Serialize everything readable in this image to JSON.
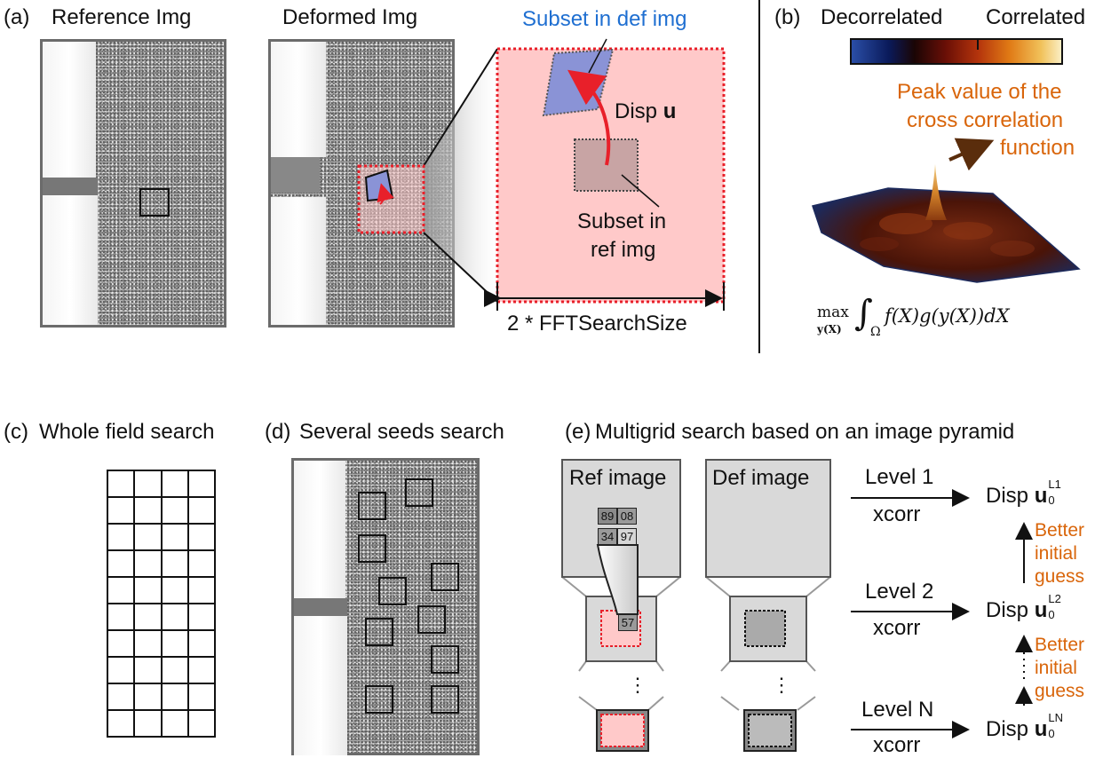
{
  "panel_a": {
    "tag": "(a)",
    "ref_title": "Reference Img",
    "def_title": "Deformed Img",
    "subset_def": "Subset in def img",
    "disp_prefix": "Disp ",
    "disp_symbol": "u",
    "subset_ref_line1": "Subset in",
    "subset_ref_line2": "ref img",
    "search_size": "2 * FFTSearchSize"
  },
  "panel_b": {
    "tag": "(b)",
    "decorrelated": "Decorrelated",
    "correlated": "Correlated",
    "peak_line1": "Peak value of the",
    "peak_line2": "cross correlation",
    "peak_line3": "function",
    "formula_max": "max",
    "formula_sub": "y(X)",
    "formula_domain": "Ω",
    "formula_body": "f(X)g(y(X))dX"
  },
  "panel_c": {
    "tag": "(c)",
    "title": "Whole field search"
  },
  "panel_d": {
    "tag": "(d)",
    "title": "Several seeds search"
  },
  "panel_e": {
    "tag": "(e)",
    "title": "Multigrid search based on an image pyramid",
    "ref_image": "Ref image",
    "def_image": "Def image",
    "cells": [
      "89",
      "08",
      "34",
      "97"
    ],
    "cell_57": "57",
    "levels": [
      {
        "label": "Level 1",
        "method": "xcorr",
        "disp": "Disp ",
        "u": "u",
        "sub": "0",
        "sup": "L1"
      },
      {
        "label": "Level 2",
        "method": "xcorr",
        "disp": "Disp ",
        "u": "u",
        "sub": "0",
        "sup": "L2"
      },
      {
        "label": "Level N",
        "method": "xcorr",
        "disp": "Disp ",
        "u": "u",
        "sub": "0",
        "sup": "LN"
      }
    ],
    "better_guess": [
      "Better",
      "initial",
      "guess"
    ],
    "dots": "⋮"
  },
  "colors": {
    "highlight_red": "#e8202a",
    "highlight_fill": "#ffc9c9",
    "subset_blue": "#8a93d6",
    "orange_text": "#d9650a",
    "blue_text": "#1f6fd1"
  }
}
